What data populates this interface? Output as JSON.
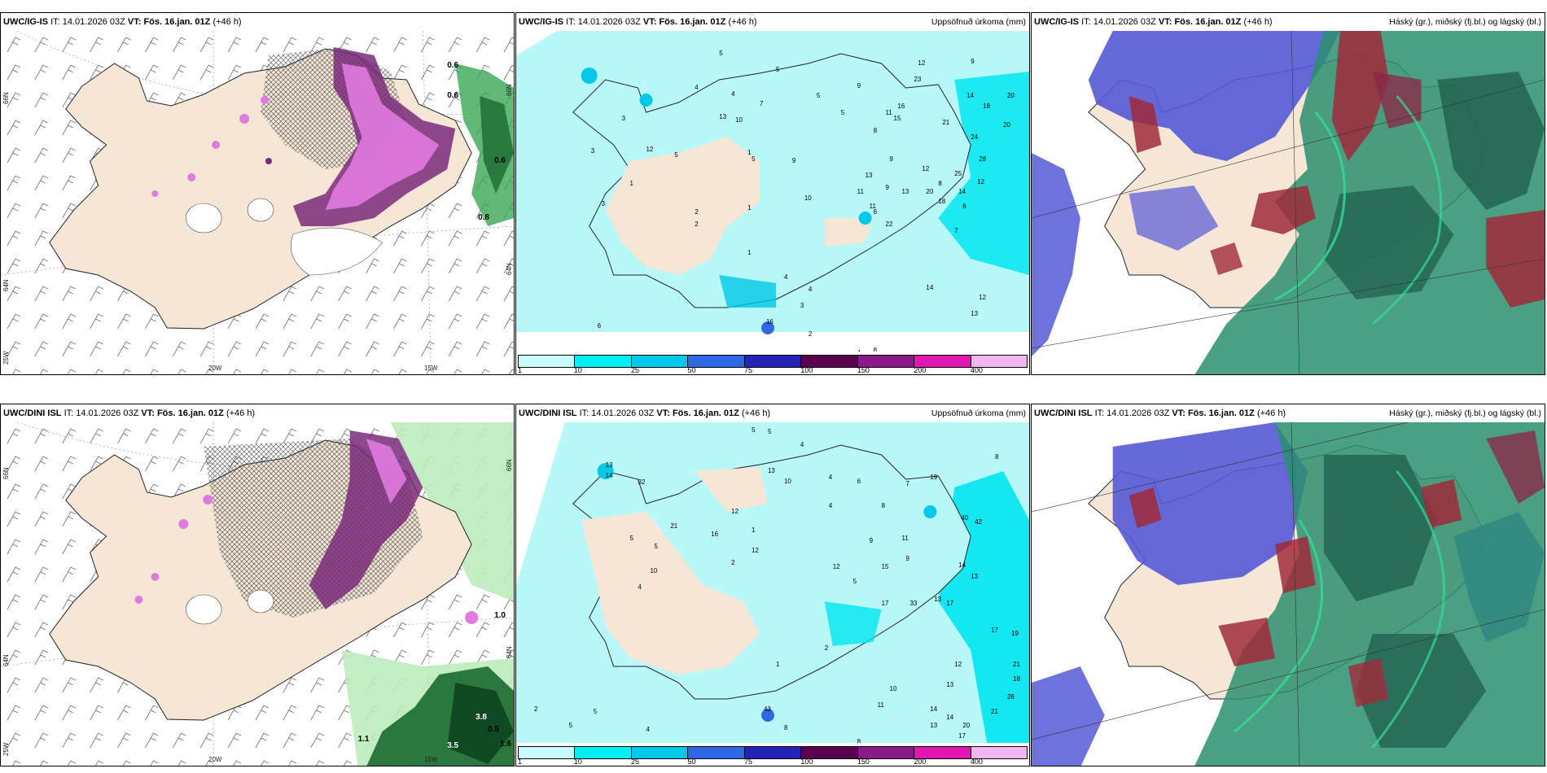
{
  "colors": {
    "land": "#f5e6d6",
    "precip_light": "#b8f8f8",
    "precip_10": "#00e6ef",
    "precip_25": "#00c8e6",
    "snow_pink": "#e07ae0",
    "snow_purple": "#7a2a7a",
    "rain_green": "#3aa856",
    "cloud_high_green": "#2a8f6f",
    "cloud_mid_blue": "#5559d6",
    "cloud_low_red": "#a02a3a"
  },
  "legend": {
    "labels": [
      "1",
      "10",
      "25",
      "50",
      "75",
      "100",
      "150",
      "200",
      "400"
    ],
    "colors": [
      "#c8fcfc",
      "#00eef5",
      "#00c8e8",
      "#2f67e6",
      "#2323b8",
      "#58004f",
      "#8a1a8a",
      "#e018b0",
      "#f4b6f0"
    ]
  },
  "top": {
    "panel1": {
      "model": "UWC/IG-IS",
      "it_label": "IT:",
      "it_value": "14.01.2026 03Z",
      "vt_label": "VT:",
      "vt_value": "Fös. 16.jan. 01Z",
      "lead": "(+46 h)",
      "right_title": "",
      "lon_labels": [
        "20W",
        "15W"
      ],
      "lat_labels_left": [
        "66N",
        "64N",
        "25W"
      ],
      "lat_labels_right": [
        "66N",
        "64N"
      ],
      "values": [
        "0.6",
        "0.6",
        "0.6",
        "0.8"
      ]
    },
    "panel2": {
      "model": "UWC/IG-IS",
      "it_label": "IT:",
      "it_value": "14.01.2026 03Z",
      "vt_label": "VT:",
      "vt_value": "Fös. 16.jan. 01Z",
      "lead": "(+46 h)",
      "right_title": "Uppsöfnuð úrkoma (mm)",
      "numbers": [
        "5",
        "5",
        "12",
        "9",
        "4",
        "4",
        "9",
        "20",
        "14",
        "18",
        "23",
        "5",
        "16",
        "11",
        "13",
        "10",
        "7",
        "5",
        "8",
        "15",
        "20",
        "3",
        "21",
        "12",
        "5",
        "24",
        "28",
        "9",
        "3",
        "9",
        "5",
        "1",
        "12",
        "13",
        "8",
        "11",
        "9",
        "13",
        "20",
        "25",
        "14",
        "12",
        "6",
        "18",
        "10",
        "3",
        "2",
        "2",
        "1",
        "11",
        "22",
        "7",
        "1",
        "4",
        "14",
        "12",
        "6",
        "1",
        "13",
        "4",
        "3",
        "2",
        "8",
        "8",
        "6",
        "16",
        "4"
      ]
    },
    "panel3": {
      "model": "UWC/IG-IS",
      "it_label": "IT:",
      "it_value": "14.01.2026 03Z",
      "vt_label": "VT:",
      "vt_value": "Fös. 16.jan. 01Z",
      "lead": "(+46 h)",
      "right_title": "Háský (gr.), miðský (fj.bl.) og lágský (bl.)"
    }
  },
  "bottom": {
    "panel1": {
      "model": "UWC/DINI ISL",
      "it_label": "IT:",
      "it_value": "14.01.2026 03Z",
      "vt_label": "VT:",
      "vt_value": "Fös. 16.jan. 01Z",
      "lead": "(+46 h)",
      "right_title": "",
      "lon_labels": [
        "20W",
        "15W"
      ],
      "lat_labels_left": [
        "66N",
        "64N",
        "25W"
      ],
      "lat_labels_right": [
        "66N",
        "64N"
      ],
      "values": [
        "1.0",
        "1.1",
        "0.5",
        "3.5",
        "3.8",
        "1.6"
      ]
    },
    "panel2": {
      "model": "UWC/DINI ISL",
      "it_label": "IT:",
      "it_value": "14.01.2026 03Z",
      "vt_label": "VT:",
      "vt_value": "Fös. 16.jan. 01Z",
      "lead": "(+46 h)",
      "right_title": "Uppsöfnuð úrkoma (mm)",
      "numbers": [
        "5",
        "5",
        "4",
        "8",
        "13",
        "14",
        "32",
        "13",
        "10",
        "4",
        "6",
        "7",
        "19",
        "12",
        "4",
        "8",
        "1",
        "5",
        "5",
        "21",
        "16",
        "12",
        "2",
        "9",
        "11",
        "40",
        "42",
        "10",
        "4",
        "9",
        "15",
        "14",
        "12",
        "13",
        "5",
        "17",
        "33",
        "13",
        "17",
        "17",
        "19",
        "21",
        "18",
        "13",
        "12",
        "26",
        "10",
        "11",
        "14",
        "20",
        "21",
        "2",
        "5",
        "5",
        "4",
        "8",
        "17",
        "43",
        "1",
        "2",
        "8",
        "14",
        "13"
      ]
    },
    "panel3": {
      "model": "UWC/DINI ISL",
      "it_label": "IT:",
      "it_value": "14.01.2026 03Z",
      "vt_label": "VT:",
      "vt_value": "Fös. 16.jan. 01Z",
      "lead": "(+46 h)",
      "right_title": "Háský (gr.), miðský (fj.bl.) og lágský (bl.)"
    }
  }
}
